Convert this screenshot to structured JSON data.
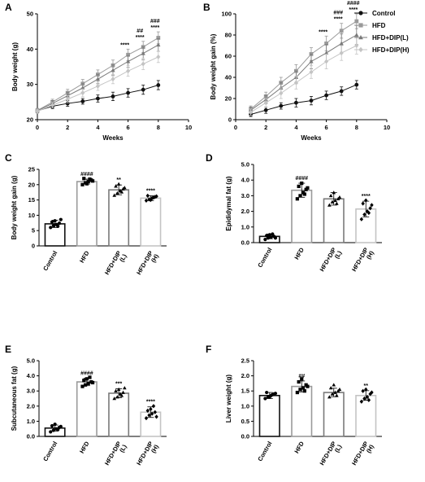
{
  "colors": {
    "Control": "#111111",
    "HFD": "#9a9a9a",
    "HFD+DIP(L)": "#7a7a7a",
    "HFD+DIP(H)": "#c4c4c4"
  },
  "legend": {
    "placement": "right of panel B",
    "items": [
      {
        "label": "Control",
        "marker": "circle"
      },
      {
        "label": "HFD",
        "marker": "square"
      },
      {
        "label": "HFD+DIP(L)",
        "marker": "triangle"
      },
      {
        "label": "HFD+DIP(H)",
        "marker": "diamond"
      }
    ]
  },
  "chart_data": [
    {
      "panel": "A",
      "type": "line",
      "xlabel": "Weeks",
      "ylabel": "Body weight (g)",
      "xlim": [
        0,
        10
      ],
      "ylim": [
        20,
        50
      ],
      "xticks": [
        0,
        2,
        4,
        6,
        8,
        10
      ],
      "yticks": [
        20,
        30,
        40,
        50
      ],
      "x": [
        0,
        1,
        2,
        3,
        4,
        5,
        6,
        7,
        8
      ],
      "series": [
        {
          "name": "Control",
          "marker": "circle",
          "values": [
            22.5,
            23.8,
            24.6,
            25.2,
            26.0,
            26.6,
            27.6,
            28.5,
            29.8
          ],
          "err": [
            0.6,
            0.7,
            0.8,
            0.8,
            1.0,
            1.2,
            1.2,
            1.3,
            1.3
          ]
        },
        {
          "name": "HFD",
          "marker": "square",
          "values": [
            22.6,
            25.0,
            27.6,
            30.2,
            32.8,
            35.4,
            38.4,
            40.6,
            43.2
          ],
          "err": [
            0.6,
            0.8,
            1.0,
            1.2,
            1.3,
            1.5,
            1.6,
            1.6,
            1.7
          ]
        },
        {
          "name": "HFD+DIP(L)",
          "marker": "triangle",
          "values": [
            22.5,
            24.6,
            26.8,
            29.0,
            31.5,
            34.0,
            36.5,
            38.8,
            41.2
          ],
          "err": [
            0.6,
            0.8,
            1.0,
            1.2,
            1.3,
            1.5,
            1.7,
            1.8,
            1.8
          ]
        },
        {
          "name": "HFD+DIP(H)",
          "marker": "diamond",
          "values": [
            22.4,
            24.1,
            25.8,
            27.6,
            29.5,
            31.5,
            33.8,
            35.8,
            37.8
          ],
          "err": [
            0.6,
            0.8,
            1.0,
            1.1,
            1.2,
            1.3,
            1.5,
            1.6,
            1.6
          ]
        }
      ],
      "annotations": [
        {
          "x": 6,
          "lines": [
            "****"
          ]
        },
        {
          "x": 7,
          "lines": [
            "##",
            "****"
          ]
        },
        {
          "x": 8,
          "lines": [
            "###",
            "****"
          ]
        }
      ]
    },
    {
      "panel": "B",
      "type": "line",
      "xlabel": "Weeks",
      "ylabel": "Body weight gain (%)",
      "xlim": [
        0,
        10
      ],
      "ylim": [
        0,
        100
      ],
      "xticks": [
        0,
        2,
        4,
        6,
        8,
        10
      ],
      "yticks": [
        0,
        20,
        40,
        60,
        80,
        100
      ],
      "x": [
        1,
        2,
        3,
        4,
        5,
        6,
        7,
        8
      ],
      "series": [
        {
          "name": "Control",
          "marker": "circle",
          "values": [
            5,
            9,
            13,
            16,
            18,
            23,
            27,
            33
          ],
          "err": [
            2,
            3,
            3,
            4,
            4,
            4,
            4,
            4
          ]
        },
        {
          "name": "HFD",
          "marker": "square",
          "values": [
            10,
            22,
            35,
            46,
            62,
            72,
            84,
            93
          ],
          "err": [
            3,
            4,
            5,
            6,
            6,
            7,
            7,
            7
          ]
        },
        {
          "name": "HFD+DIP(L)",
          "marker": "triangle",
          "values": [
            9,
            19,
            30,
            40,
            55,
            63,
            72,
            80
          ],
          "err": [
            3,
            4,
            5,
            6,
            7,
            8,
            9,
            9
          ]
        },
        {
          "name": "HFD+DIP(H)",
          "marker": "diamond",
          "values": [
            7,
            16,
            25,
            35,
            45,
            55,
            63,
            70
          ],
          "err": [
            3,
            4,
            5,
            6,
            6,
            7,
            7,
            8
          ]
        }
      ],
      "annotations": [
        {
          "x": 6,
          "lines": [
            "****"
          ]
        },
        {
          "x": 7,
          "lines": [
            "###",
            "****"
          ]
        },
        {
          "x": 8,
          "lines": [
            "####",
            "****"
          ]
        }
      ]
    },
    {
      "panel": "C",
      "type": "bar",
      "ylabel": "Body weight gain (g)",
      "ylim": [
        0,
        25
      ],
      "yticks": [
        0,
        5,
        10,
        15,
        20,
        25
      ],
      "categories": [
        "Control",
        "HFD",
        "HFD+DIP\n(L)",
        "HFD+DIP\n(H)"
      ],
      "markers": [
        "circle",
        "square",
        "triangle",
        "diamond"
      ],
      "values": [
        7.2,
        21.0,
        18.3,
        15.6
      ],
      "err": [
        1.2,
        0.8,
        1.6,
        0.8
      ],
      "points": [
        [
          6.0,
          6.6,
          7.0,
          7.4,
          7.8,
          8.2,
          6.4,
          8.6
        ],
        [
          20.0,
          20.6,
          21.0,
          21.5,
          22.0,
          20.3,
          21.8,
          21.2
        ],
        [
          16.5,
          17.2,
          18.0,
          18.6,
          19.5,
          20.2,
          17.6,
          19.0
        ],
        [
          14.8,
          15.2,
          15.6,
          16.0,
          16.4,
          15.0,
          15.8,
          16.2
        ]
      ],
      "annotations": [
        "",
        "####",
        "**",
        "****"
      ]
    },
    {
      "panel": "D",
      "type": "bar",
      "ylabel": "Epididymal fat (g)",
      "ylim": [
        0,
        5
      ],
      "yticks": [
        "0.0",
        "1.0",
        "2.0",
        "3.0",
        "4.0",
        "5.0"
      ],
      "categories": [
        "Control",
        "HFD",
        "HFD+DIP\n(L)",
        "HFD+DIP\n(H)"
      ],
      "markers": [
        "circle",
        "square",
        "triangle",
        "diamond"
      ],
      "values": [
        0.4,
        3.35,
        2.8,
        2.15
      ],
      "err": [
        0.15,
        0.45,
        0.4,
        0.5
      ],
      "points": [
        [
          0.2,
          0.3,
          0.35,
          0.4,
          0.45,
          0.5,
          0.55,
          0.3
        ],
        [
          2.8,
          3.0,
          3.2,
          3.4,
          3.6,
          3.8,
          3.1,
          3.5
        ],
        [
          2.4,
          2.6,
          2.7,
          2.8,
          3.0,
          3.2,
          2.5,
          2.9
        ],
        [
          1.5,
          1.8,
          2.0,
          2.2,
          2.5,
          2.7,
          1.9,
          2.4
        ]
      ],
      "annotations": [
        "",
        "####",
        "",
        "****"
      ]
    },
    {
      "panel": "E",
      "type": "bar",
      "ylabel": "Subcutaneous fat (g)",
      "ylim": [
        0,
        5
      ],
      "yticks": [
        "0.0",
        "1.0",
        "2.0",
        "3.0",
        "4.0",
        "5.0"
      ],
      "categories": [
        "Control",
        "HFD",
        "HFD+DIP\n(L)",
        "HFD+DIP\n(H)"
      ],
      "markers": [
        "circle",
        "square",
        "triangle",
        "diamond"
      ],
      "values": [
        0.55,
        3.6,
        2.85,
        1.6
      ],
      "err": [
        0.2,
        0.25,
        0.3,
        0.35
      ],
      "points": [
        [
          0.3,
          0.4,
          0.5,
          0.6,
          0.7,
          0.8,
          0.45,
          0.65
        ],
        [
          3.3,
          3.4,
          3.5,
          3.6,
          3.7,
          3.8,
          3.9,
          3.55
        ],
        [
          2.5,
          2.6,
          2.8,
          2.9,
          3.0,
          3.1,
          2.7,
          3.2
        ],
        [
          1.2,
          1.4,
          1.5,
          1.6,
          1.7,
          1.8,
          2.0,
          1.3
        ]
      ],
      "annotations": [
        "",
        "####",
        "***",
        "****"
      ]
    },
    {
      "panel": "F",
      "type": "bar",
      "ylabel": "Liver weight (g)",
      "ylim": [
        0,
        2.5
      ],
      "yticks": [
        "0.0",
        "0.5",
        "1.0",
        "1.5",
        "2.0",
        "2.5"
      ],
      "categories": [
        "Control",
        "HFD",
        "HFD+DIP\n(L)",
        "HFD+DIP\n(H)"
      ],
      "markers": [
        "circle",
        "square",
        "triangle",
        "diamond"
      ],
      "values": [
        1.35,
        1.65,
        1.45,
        1.35
      ],
      "err": [
        0.1,
        0.18,
        0.14,
        0.16
      ],
      "points": [
        [
          1.25,
          1.3,
          1.35,
          1.4,
          1.45,
          1.3,
          1.38,
          1.42
        ],
        [
          1.45,
          1.55,
          1.6,
          1.7,
          1.8,
          1.9,
          1.5,
          1.65
        ],
        [
          1.3,
          1.4,
          1.45,
          1.5,
          1.6,
          1.7,
          1.35,
          1.55
        ],
        [
          1.15,
          1.25,
          1.3,
          1.4,
          1.5,
          1.55,
          1.2,
          1.45
        ]
      ],
      "annotations": [
        "",
        "##",
        "",
        "**"
      ]
    }
  ]
}
